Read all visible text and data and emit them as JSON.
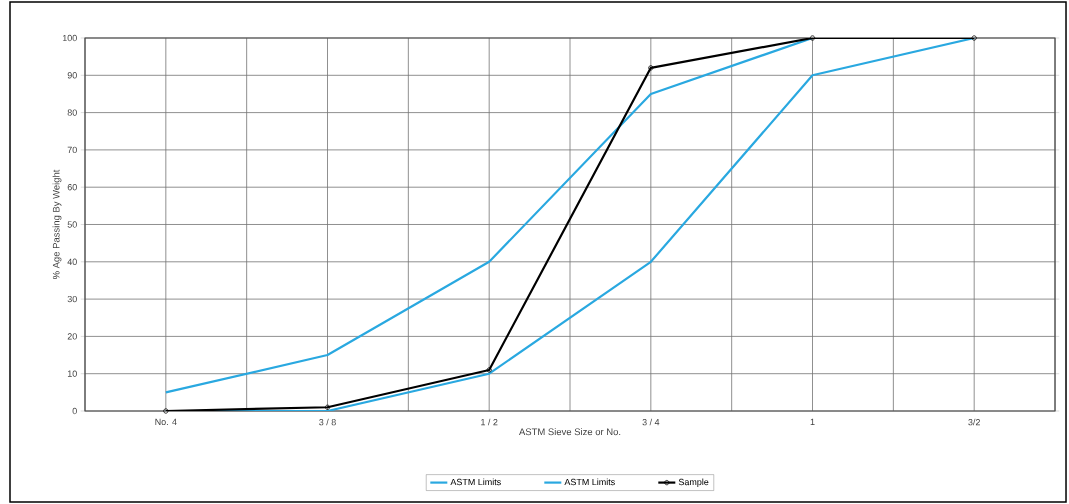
{
  "chart_data": {
    "type": "line",
    "xlabel": "ASTM Sieve Size or No.",
    "ylabel": "% Age Passing By Weight",
    "categories": [
      "No. 4",
      "3 / 8",
      "1 / 2",
      "3 / 4",
      "1",
      "3/2"
    ],
    "series": [
      {
        "name": "ASTM Limits",
        "color": "#29a8e0",
        "marker": "none",
        "values": [
          5,
          15,
          40,
          85,
          100,
          100
        ]
      },
      {
        "name": "ASTM Limits",
        "color": "#29a8e0",
        "marker": "none",
        "values": [
          0,
          0,
          10,
          40,
          90,
          100
        ]
      },
      {
        "name": "Sample",
        "color": "#000000",
        "marker": "circle",
        "values": [
          0,
          1,
          11,
          92,
          100,
          100
        ]
      }
    ],
    "ylim": [
      0,
      100
    ],
    "yticks": [
      0,
      10,
      20,
      30,
      40,
      50,
      60,
      70,
      80,
      90,
      100
    ],
    "grid": true,
    "legend": "bottom",
    "line_style": "solid"
  }
}
